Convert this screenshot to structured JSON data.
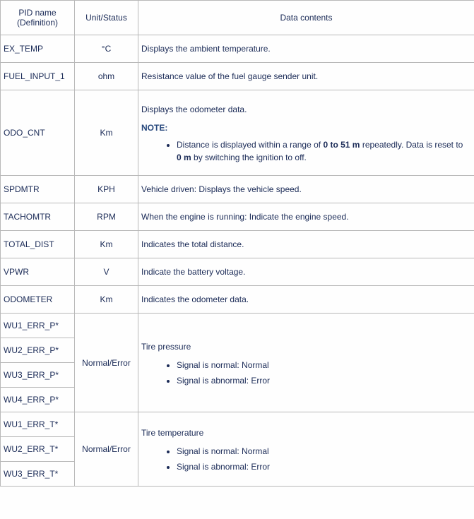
{
  "colors": {
    "border": "#b8b8b8",
    "text": "#1b2b57",
    "note_label": "#26477c",
    "background": "#fefefe"
  },
  "typography": {
    "font_family": "Verdana, Arial, sans-serif",
    "font_size_pt": 9
  },
  "headers": {
    "pid": "PID name (Definition)",
    "unit": "Unit/Status",
    "desc": "Data contents"
  },
  "rows": {
    "ex_temp": {
      "pid": "EX_TEMP",
      "unit": "°C",
      "desc": "Displays the ambient temperature."
    },
    "fuel_input_1": {
      "pid": "FUEL_INPUT_1",
      "unit": "ohm",
      "desc": "Resistance value of the fuel gauge sender unit."
    },
    "odo_cnt": {
      "pid": "ODO_CNT",
      "unit": "Km",
      "lead": "Displays the odometer data.",
      "note_label": "NOTE:",
      "note_pre": "Distance is displayed within a range of ",
      "note_b1": "0 to 51 m",
      "note_mid": " repeatedly. Data is reset to ",
      "note_b2": "0 m",
      "note_post": " by switching the ignition to off."
    },
    "spdmtr": {
      "pid": "SPDMTR",
      "unit": "KPH",
      "desc": "Vehicle driven: Displays the vehicle speed."
    },
    "tachomtr": {
      "pid": "TACHOMTR",
      "unit": "RPM",
      "desc": "When the engine is running: Indicate the engine speed."
    },
    "total_dist": {
      "pid": "TOTAL_DIST",
      "unit": "Km",
      "desc": "Indicates the total distance."
    },
    "vpwr": {
      "pid": "VPWR",
      "unit": "V",
      "desc": "Indicate the battery voltage."
    },
    "odometer": {
      "pid": "ODOMETER",
      "unit": "Km",
      "desc": "Indicates the odometer data."
    },
    "wu_err_p": {
      "pids": [
        "WU1_ERR_P*",
        "WU2_ERR_P*",
        "WU3_ERR_P*",
        "WU4_ERR_P*"
      ],
      "unit": "Normal/Error",
      "lead": "Tire pressure",
      "b1": "Signal is normal: Normal",
      "b2": "Signal is abnormal: Error"
    },
    "wu_err_t": {
      "pids": [
        "WU1_ERR_T*",
        "WU2_ERR_T*",
        "WU3_ERR_T*"
      ],
      "unit": "Normal/Error",
      "lead": "Tire temperature",
      "b1": "Signal is normal: Normal",
      "b2": "Signal is abnormal: Error"
    }
  }
}
